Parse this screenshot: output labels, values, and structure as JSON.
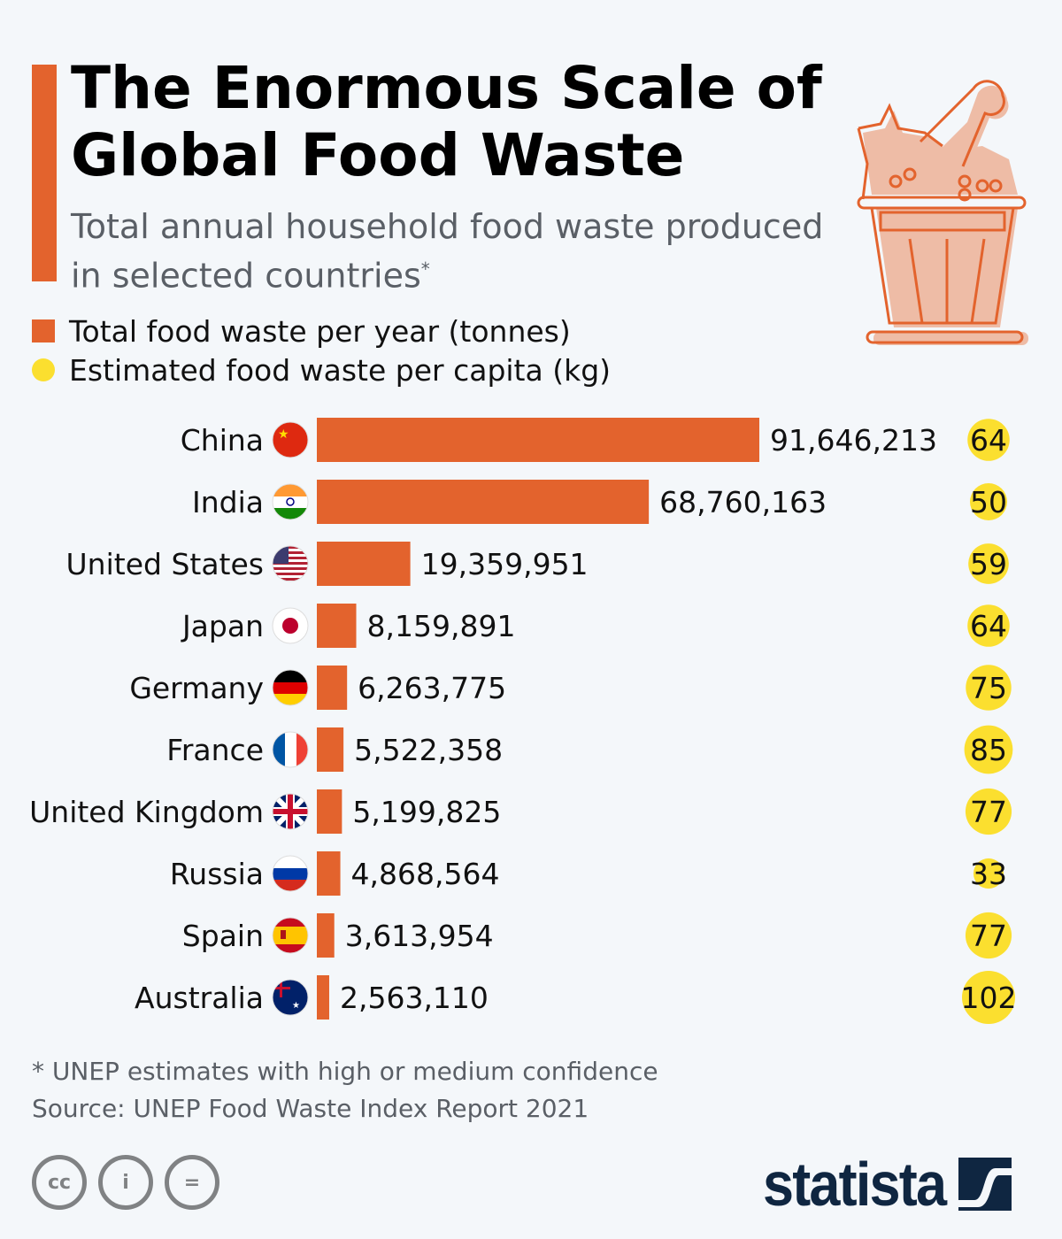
{
  "header": {
    "title_line1": "The Enormous Scale of",
    "title_line2": "Global Food Waste",
    "subtitle": "Total annual household food waste produced in selected countries",
    "subtitle_mark": "*"
  },
  "legend": {
    "bar_label": "Total food waste per year (tonnes)",
    "dot_label": "Estimated food waste per capita (kg)"
  },
  "colors": {
    "bar": "#e3632d",
    "dot": "#fbdf2f",
    "accent": "#e3632d",
    "brand": "#0f2641"
  },
  "chart_data": {
    "type": "bar",
    "orientation": "horizontal",
    "categories": [
      "China",
      "India",
      "United States",
      "Japan",
      "Germany",
      "France",
      "United Kingdom",
      "Russia",
      "Spain",
      "Australia"
    ],
    "series": [
      {
        "name": "Total food waste per year (tonnes)",
        "values": [
          91646213,
          68760163,
          19359951,
          8159891,
          6263775,
          5522358,
          5199825,
          4868564,
          3613954,
          2563110
        ],
        "labels": [
          "91,646,213",
          "68,760,163",
          "19,359,951",
          "8,159,891",
          "6,263,775",
          "5,522,358",
          "5,199,825",
          "4,868,564",
          "3,613,954",
          "2,563,110"
        ]
      },
      {
        "name": "Estimated food waste per capita (kg)",
        "values": [
          64,
          50,
          59,
          64,
          75,
          85,
          77,
          33,
          77,
          102
        ]
      }
    ],
    "flags": [
      "china-flag",
      "india-flag",
      "us-flag",
      "japan-flag",
      "germany-flag",
      "france-flag",
      "uk-flag",
      "russia-flag",
      "spain-flag",
      "australia-flag"
    ],
    "grid": false
  },
  "footer": {
    "note": "* UNEP estimates with high or medium confidence",
    "source": "Source: UNEP Food Waste Index Report 2021",
    "cc_labels": [
      "cc",
      "i",
      "="
    ],
    "brand": "statista"
  }
}
